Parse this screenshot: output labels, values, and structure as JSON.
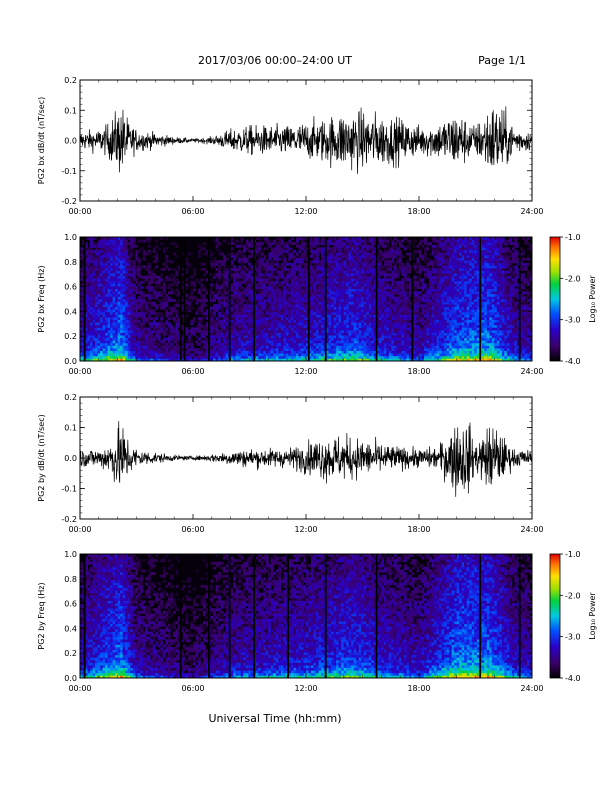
{
  "header": {
    "title": "2017/03/06  00:00–24:00 UT",
    "page": "Page 1/1"
  },
  "footer": {
    "xlabel": "Universal Time (hh:mm)"
  },
  "colorbar": {
    "label": "Log₁₀ Power",
    "ticks": [
      "-1.0",
      "-2.0",
      "-3.0",
      "-4.0"
    ]
  },
  "chart_data": [
    {
      "type": "line",
      "ylabel": "PG2 bx dB/dt (nT/sec)",
      "ylim": [
        -0.2,
        0.2
      ],
      "yticks": [
        "0.2",
        "0.1",
        "0.0",
        "-0.1",
        "-0.2"
      ],
      "xlim": [
        0,
        24
      ],
      "xticks": [
        "00:00",
        "06:00",
        "12:00",
        "18:00",
        "24:00"
      ],
      "envelope": [
        [
          0,
          0.05
        ],
        [
          1.0,
          0.06
        ],
        [
          1.4,
          0.08
        ],
        [
          2.2,
          0.2
        ],
        [
          2.6,
          0.1
        ],
        [
          3.0,
          0.06
        ],
        [
          4.0,
          0.04
        ],
        [
          5.0,
          0.02
        ],
        [
          6.0,
          0.01
        ],
        [
          7.0,
          0.02
        ],
        [
          8.0,
          0.06
        ],
        [
          9.0,
          0.08
        ],
        [
          10.0,
          0.08
        ],
        [
          11.0,
          0.08
        ],
        [
          12.0,
          0.1
        ],
        [
          13.0,
          0.12
        ],
        [
          14.0,
          0.16
        ],
        [
          15.0,
          0.16
        ],
        [
          16.0,
          0.14
        ],
        [
          17.0,
          0.12
        ],
        [
          18.0,
          0.08
        ],
        [
          19.0,
          0.1
        ],
        [
          20.0,
          0.16
        ],
        [
          21.0,
          0.08
        ],
        [
          21.8,
          0.2
        ],
        [
          22.3,
          0.2
        ],
        [
          23.0,
          0.08
        ],
        [
          24.0,
          0.05
        ]
      ]
    },
    {
      "type": "heatmap",
      "ylabel": "PG2 bx Freq (Hz)",
      "ylim": [
        0.0,
        1.0
      ],
      "yticks": [
        "1.0",
        "0.8",
        "0.6",
        "0.4",
        "0.2",
        "0.0"
      ],
      "xlim": [
        0,
        24
      ],
      "xticks": [
        "00:00",
        "06:00",
        "12:00",
        "18:00",
        "24:00"
      ],
      "zlim": [
        -4.0,
        -1.0
      ],
      "activity": [
        [
          0,
          0.4
        ],
        [
          2.2,
          0.9
        ],
        [
          3,
          0.3
        ],
        [
          6,
          0.05
        ],
        [
          8,
          0.35
        ],
        [
          12,
          0.5
        ],
        [
          14.5,
          0.7
        ],
        [
          16,
          0.5
        ],
        [
          18,
          0.3
        ],
        [
          20,
          0.8
        ],
        [
          21.8,
          0.9
        ],
        [
          23,
          0.4
        ],
        [
          24,
          0.3
        ]
      ],
      "gaps": [
        0.2,
        5.3,
        5.5,
        6.8,
        7.9,
        9.2,
        12.1,
        13.0,
        15.7,
        17.6,
        21.2,
        23.3
      ]
    },
    {
      "type": "line",
      "ylabel": "PG2 by dB/dt (nT/sec)",
      "ylim": [
        -0.2,
        0.2
      ],
      "yticks": [
        "0.2",
        "0.1",
        "0.0",
        "-0.1",
        "-0.2"
      ],
      "xlim": [
        0,
        24
      ],
      "xticks": [
        "00:00",
        "06:00",
        "12:00",
        "18:00",
        "24:00"
      ],
      "envelope": [
        [
          0,
          0.05
        ],
        [
          1.0,
          0.05
        ],
        [
          1.5,
          0.08
        ],
        [
          2.2,
          0.2
        ],
        [
          2.6,
          0.1
        ],
        [
          3.0,
          0.05
        ],
        [
          4.0,
          0.03
        ],
        [
          5.0,
          0.015
        ],
        [
          6.0,
          0.01
        ],
        [
          7.0,
          0.02
        ],
        [
          8.0,
          0.04
        ],
        [
          9.0,
          0.05
        ],
        [
          10.0,
          0.05
        ],
        [
          11.0,
          0.05
        ],
        [
          12.0,
          0.08
        ],
        [
          13.0,
          0.12
        ],
        [
          14.0,
          0.12
        ],
        [
          15.0,
          0.1
        ],
        [
          16.0,
          0.08
        ],
        [
          17.0,
          0.06
        ],
        [
          18.0,
          0.05
        ],
        [
          19.0,
          0.06
        ],
        [
          20.0,
          0.2
        ],
        [
          20.6,
          0.2
        ],
        [
          21.0,
          0.08
        ],
        [
          21.9,
          0.2
        ],
        [
          22.4,
          0.12
        ],
        [
          23.0,
          0.05
        ],
        [
          24.0,
          0.04
        ]
      ]
    },
    {
      "type": "heatmap",
      "ylabel": "PG2 by Freq (Hz)",
      "ylim": [
        0.0,
        1.0
      ],
      "yticks": [
        "1.0",
        "0.8",
        "0.6",
        "0.4",
        "0.2",
        "0.0"
      ],
      "xlim": [
        0,
        24
      ],
      "xticks": [
        "00:00",
        "06:00",
        "12:00",
        "18:00",
        "24:00"
      ],
      "zlim": [
        -4.0,
        -1.0
      ],
      "activity": [
        [
          0,
          0.4
        ],
        [
          2.2,
          0.9
        ],
        [
          3,
          0.3
        ],
        [
          6,
          0.05
        ],
        [
          8,
          0.35
        ],
        [
          12,
          0.5
        ],
        [
          14.5,
          0.7
        ],
        [
          16,
          0.5
        ],
        [
          18,
          0.35
        ],
        [
          20,
          0.9
        ],
        [
          21.8,
          0.9
        ],
        [
          23,
          0.45
        ],
        [
          24,
          0.3
        ]
      ],
      "gaps": [
        0.2,
        5.3,
        6.8,
        7.9,
        9.2,
        11.0,
        13.0,
        15.7,
        21.2,
        23.3
      ]
    }
  ]
}
